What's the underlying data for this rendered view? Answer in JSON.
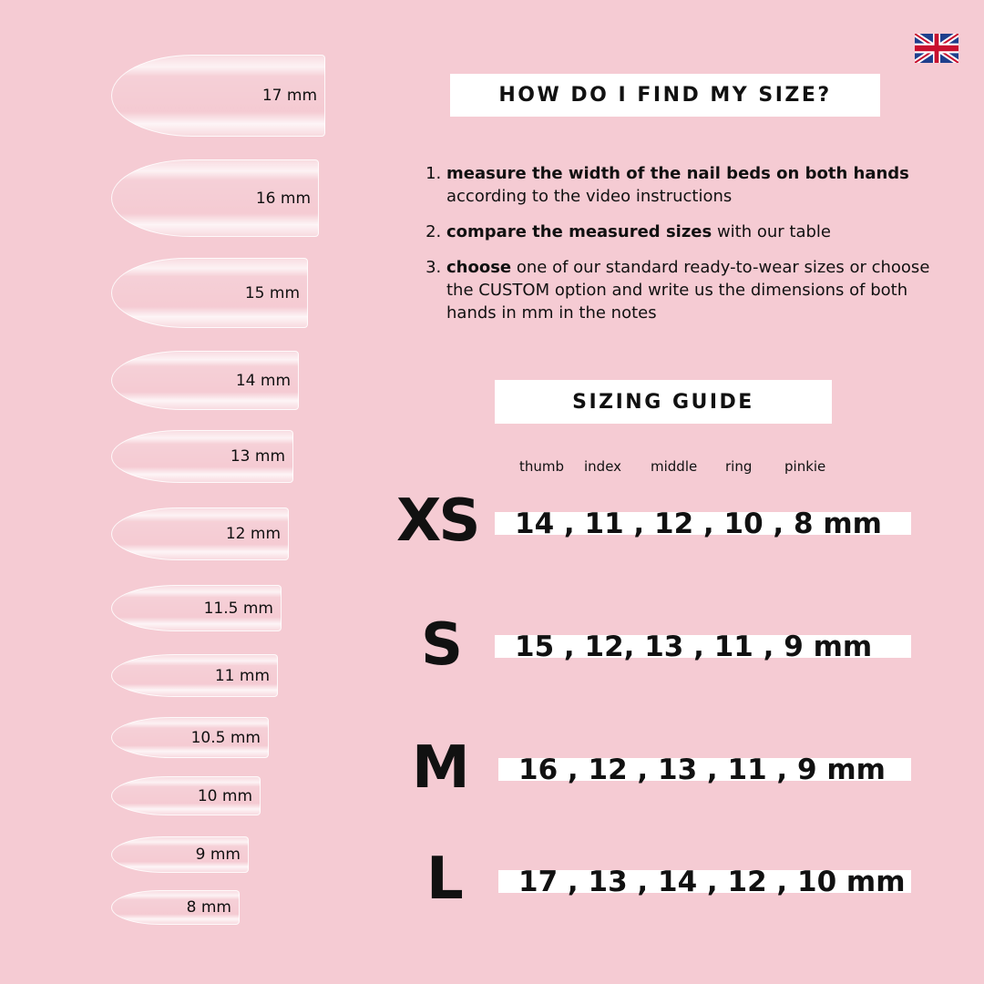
{
  "nails": [
    "17 mm",
    "16 mm",
    "15 mm",
    "14 mm",
    "13 mm",
    "12 mm",
    "11.5 mm",
    "11 mm",
    "10.5 mm",
    "10 mm",
    "9 mm",
    "8 mm"
  ],
  "title": "HOW DO I FIND MY SIZE?",
  "steps": [
    {
      "bold": "measure the width of the nail beds on both hands",
      "rest": " according to the video instructions"
    },
    {
      "bold": "compare the measured sizes",
      "rest": " with our table"
    },
    {
      "bold": "choose",
      "rest": " one of our standard ready-to-wear sizes or choose the CUSTOM option and write us the dimensions of both hands in mm in the notes"
    }
  ],
  "guide_title": "SIZING GUIDE",
  "fingers": [
    "thumb",
    "index",
    "middle",
    "ring",
    "pinkie"
  ],
  "sizes": [
    {
      "label": "XS",
      "values": "14 , 11 , 12 , 10 , 8 mm"
    },
    {
      "label": "S",
      "values": "15 , 12, 13 , 11 , 9 mm"
    },
    {
      "label": "M",
      "values": "16 , 12 , 13 , 11 , 9 mm"
    },
    {
      "label": "L",
      "values": "17 , 13 , 14 , 12 , 10 mm"
    }
  ],
  "flag_icon": "uk-flag-icon",
  "colors": {
    "background": "#f5cbd3",
    "box": "#ffffff"
  }
}
